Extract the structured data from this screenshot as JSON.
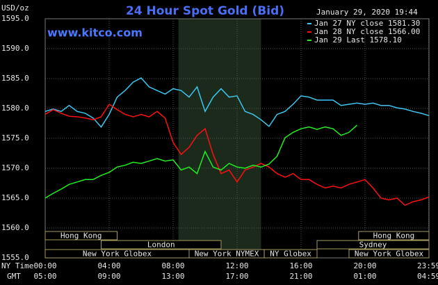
{
  "chart_data": {
    "type": "line",
    "title": "24 Hour Spot Gold (Bid)",
    "subtitle": "January 29, 2020 19:44",
    "watermark": "www.kitco.com",
    "y_label": "USD/oz",
    "x_label": "NY Time",
    "x2_label": "GMT",
    "xlim": [
      0,
      24
    ],
    "ylim": [
      1555,
      1595
    ],
    "grid": true,
    "xticks": [
      {
        "value": 0,
        "label": "00:00"
      },
      {
        "value": 4,
        "label": "04:00"
      },
      {
        "value": 8,
        "label": "08:00"
      },
      {
        "value": 12,
        "label": "12:00"
      },
      {
        "value": 16,
        "label": "16:00"
      },
      {
        "value": 20,
        "label": "20:00"
      },
      {
        "value": 23.983,
        "label": "23:59"
      }
    ],
    "x2tick_labels": [
      "05:00",
      "09:00",
      "13:00",
      "17:00",
      "21:00",
      "01:00",
      "04:59"
    ],
    "yticks": [
      {
        "value": 1555,
        "label": "1555.0"
      },
      {
        "value": 1560,
        "label": "1560.0"
      },
      {
        "value": 1565,
        "label": "1565.0"
      },
      {
        "value": 1570,
        "label": "1570.0"
      },
      {
        "value": 1575,
        "label": "1575.0"
      },
      {
        "value": 1580,
        "label": "1580.0"
      },
      {
        "value": 1585,
        "label": "1585.0"
      },
      {
        "value": 1590,
        "label": "1590.0"
      },
      {
        "value": 1595,
        "label": "1595.0"
      }
    ],
    "highlight": [
      8.33,
      13.5
    ],
    "sessions": [
      {
        "label": "Hong Kong",
        "start": 0,
        "end": 4.5,
        "row": 0
      },
      {
        "label": "Hong Kong",
        "start": 19.6,
        "end": 24,
        "row": 0
      },
      {
        "label": "London",
        "start": 3.5,
        "end": 11,
        "row": 1
      },
      {
        "label": "Sydney",
        "start": 17,
        "end": 24,
        "row": 1
      },
      {
        "label": "New York Globex",
        "start": 0,
        "end": 9,
        "row": 2
      },
      {
        "label": "New York NYMEX",
        "start": 9,
        "end": 13.7,
        "row": 2
      },
      {
        "label": "NY Globex",
        "start": 13.7,
        "end": 17,
        "row": 2
      },
      {
        "label": "New York Globex",
        "start": 19,
        "end": 24,
        "row": 2
      }
    ],
    "x": [
      0,
      0.5,
      1,
      1.5,
      2,
      2.5,
      3,
      3.5,
      4,
      4.5,
      5,
      5.5,
      6,
      6.5,
      7,
      7.5,
      8,
      8.5,
      9,
      9.5,
      10,
      10.5,
      11,
      11.5,
      12,
      12.5,
      13,
      13.5,
      14,
      14.5,
      15,
      15.5,
      16,
      16.5,
      17,
      17.5,
      18,
      18.5,
      19,
      19.5,
      20,
      20.5,
      21,
      21.5,
      22,
      22.5,
      23,
      23.5,
      24
    ],
    "series": [
      {
        "name": "Jan 27 NY close 1581.30",
        "color": "#3cc8f0",
        "values": [
          1579.5,
          1579.9,
          1579.5,
          1580.5,
          1579.5,
          1579.2,
          1578.4,
          1576.9,
          1579.0,
          1581.9,
          1583.0,
          1584.4,
          1585.1,
          1583.6,
          1583.0,
          1582.4,
          1583.3,
          1583.0,
          1581.9,
          1583.6,
          1579.5,
          1581.9,
          1583.3,
          1581.9,
          1582.1,
          1579.5,
          1579.0,
          1578.1,
          1577.0,
          1579.0,
          1579.5,
          1580.7,
          1582.1,
          1581.9,
          1581.4,
          1581.4,
          1581.4,
          1580.5,
          1580.7,
          1580.9,
          1580.7,
          1580.9,
          1580.5,
          1580.5,
          1580.1,
          1579.9,
          1579.5,
          1579.2,
          1578.8
        ]
      },
      {
        "name": "Jan 28 NY close 1566.00",
        "color": "#ff1010",
        "values": [
          1579.0,
          1579.8,
          1579.2,
          1578.7,
          1578.6,
          1578.4,
          1578.1,
          1578.6,
          1580.7,
          1579.8,
          1579.0,
          1578.6,
          1579.0,
          1578.6,
          1579.5,
          1578.4,
          1574.3,
          1572.3,
          1573.5,
          1575.5,
          1576.6,
          1572.3,
          1569.1,
          1569.7,
          1567.7,
          1569.7,
          1570.2,
          1570.8,
          1570.2,
          1569.1,
          1568.5,
          1569.1,
          1568.1,
          1568.1,
          1567.3,
          1566.7,
          1567.0,
          1566.7,
          1567.3,
          1567.7,
          1568.1,
          1566.7,
          1565.0,
          1564.7,
          1565.0,
          1563.8,
          1564.4,
          1564.7,
          1565.2
        ]
      },
      {
        "name": "Jan 29 Last 1578.10",
        "color": "#20f020",
        "values": [
          1565.0,
          1565.8,
          1566.5,
          1567.3,
          1567.7,
          1568.1,
          1568.1,
          1568.8,
          1569.3,
          1570.2,
          1570.5,
          1571.0,
          1570.8,
          1571.2,
          1571.6,
          1571.2,
          1571.4,
          1569.7,
          1570.2,
          1569.1,
          1572.8,
          1570.2,
          1569.7,
          1570.8,
          1570.2,
          1570.0,
          1570.5,
          1570.2,
          1570.7,
          1572.0,
          1575.1,
          1576.0,
          1576.6,
          1576.9,
          1576.5,
          1576.9,
          1576.6,
          1575.5,
          1576.0,
          1577.2,
          null,
          null,
          null,
          null,
          null,
          null,
          null,
          null,
          null
        ]
      }
    ]
  }
}
